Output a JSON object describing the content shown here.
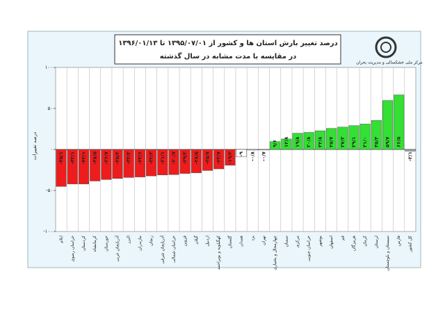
{
  "chart_data": {
    "type": "bar",
    "title": "درصد تغییر بارش استان ها و کشور از ۱۳۹۵/۰۷/۰۱ تا ۱۳۹۶/۰۱/۱۳",
    "subtitle": "در مقایسه با مدت مشابه در سال گذشته",
    "logo_text": "مرکز ملی خشکسالی و مدیریت بحران",
    "y_label": "درصد تغییرات",
    "categories": [
      "ایلام",
      "خراسان رضوی",
      "کردستان",
      "کرمانشاه",
      "خوزستان",
      "آذربایجان غربی",
      "البرز",
      "مازندران",
      "زنجان",
      "آذربایجان شرقی",
      "خراسان شمالی",
      "قزوین",
      "گیلان",
      "اردبیل",
      "کهگیلویه و بویراحمد",
      "گلستان",
      "همدان",
      "یزد",
      "تهران",
      "چهارمحال و بختیاری",
      "سمنان",
      "مرکزی",
      "خراسان جنوبی",
      "بوشهر",
      "اصفهان",
      "قم",
      "هرمزگان",
      "کرمان",
      "لرستان",
      "سیستان و بلوچستان",
      "فارس",
      "کل کشور"
    ],
    "values": [
      -45.1,
      -42.1,
      -42.1,
      -38.5,
      -36.7,
      -35.4,
      -34.2,
      -33.6,
      -32.3,
      -31.1,
      -30.7,
      -29.3,
      -28.5,
      -25.7,
      -23.7,
      -19.3,
      -9,
      -0.8,
      -0.7,
      9.6,
      12.8,
      19.8,
      20.8,
      22.8,
      25.7,
      27.3,
      29.1,
      31,
      35.4,
      59.7,
      66.5,
      -2.1
    ],
    "value_labels": [
      "-۴۵/۱",
      "-۴۲/۱",
      "-۴۲/۱",
      "-۳۸/۵",
      "-۳۶/۷",
      "-۳۵/۴",
      "-۳۴/۲",
      "-۳۳/۶",
      "-۳۲/۳",
      "-۳۱/۱",
      "-۳۰/۷",
      "-۲۹/۳",
      "-۲۸/۵",
      "-۲۵/۷",
      "-۲۳/۷",
      "-۱۹/۳",
      "-۹",
      "-۰/۸",
      "-۰/۷",
      "۹/۶",
      "۱۲/۸",
      "۱۹/۸",
      "۲۰/۸",
      "۲۲/۸",
      "۲۵/۷",
      "۲۷/۳",
      "۲۹/۱",
      "۳۱/۰",
      "۳۵/۴",
      "۵۹/۷",
      "۶۶/۵",
      "-۲/۱"
    ],
    "colors": [
      "#ee1c1c",
      "#ee1c1c",
      "#ee1c1c",
      "#ee1c1c",
      "#ee1c1c",
      "#ee1c1c",
      "#ee1c1c",
      "#ee1c1c",
      "#ee1c1c",
      "#ee1c1c",
      "#ee1c1c",
      "#ee1c1c",
      "#ee1c1c",
      "#ee1c1c",
      "#ee1c1c",
      "#ee1c1c",
      "#ffffff",
      "#ffffff",
      "#ffffff",
      "#33e033",
      "#33e033",
      "#33e033",
      "#33e033",
      "#33e033",
      "#33e033",
      "#33e033",
      "#33e033",
      "#33e033",
      "#33e033",
      "#33e033",
      "#33e033",
      "#9aa4b4"
    ],
    "ylim": [
      -100,
      100
    ],
    "yticks": [
      {
        "value": -100,
        "label": "-۱۰۰"
      },
      {
        "value": -50,
        "label": "-۵۰"
      },
      {
        "value": 0,
        "label": "۰"
      },
      {
        "value": 50,
        "label": "۵۰"
      },
      {
        "value": 100,
        "label": "۱۰۰"
      }
    ],
    "grid": true
  }
}
